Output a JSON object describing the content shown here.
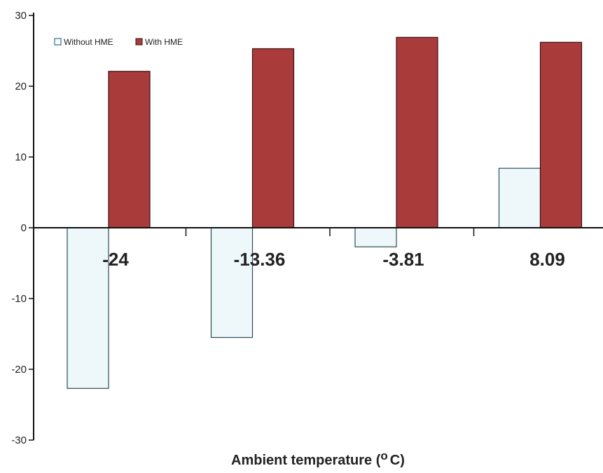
{
  "chart_data": {
    "type": "bar",
    "categories": [
      "-24",
      "-13.36",
      "-3.81",
      "8.09"
    ],
    "series": [
      {
        "name": "Without HME",
        "values": [
          -22.7,
          -15.5,
          -2.7,
          8.4
        ],
        "color": "#eef8fb"
      },
      {
        "name": "With HME",
        "values": [
          22.1,
          25.3,
          26.9,
          26.2
        ],
        "color": "#a93b3b"
      }
    ],
    "title": "",
    "xlabel_main": "Ambient temperature (",
    "xlabel_degree": "o",
    "xlabel_unit": "C)",
    "ylabel": "",
    "ylim": [
      -30,
      30
    ],
    "yticks": [
      "30",
      "20",
      "10",
      "0",
      "-10",
      "-20",
      "-30"
    ],
    "legend_position": "top-left",
    "grid": false
  }
}
